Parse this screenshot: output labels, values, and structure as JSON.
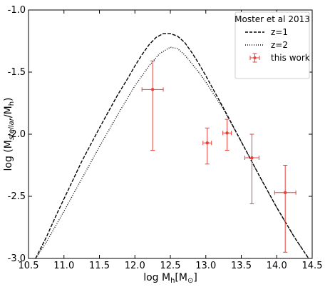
{
  "chart_data": {
    "type": "line",
    "xlim": [
      10.5,
      14.5
    ],
    "ylim": [
      -3.0,
      -1.0
    ],
    "x_ticks": [
      10.5,
      11.0,
      11.5,
      12.0,
      12.5,
      13.0,
      13.5,
      14.0,
      14.5
    ],
    "x_tick_labels": [
      "10.5",
      "11.0",
      "11.5",
      "12.0",
      "12.5",
      "13.0",
      "13.5",
      "14.0",
      "14.5"
    ],
    "y_ticks": [
      -3.0,
      -2.5,
      -2.0,
      -1.5,
      -1.0
    ],
    "y_tick_labels": [
      "-3.0",
      "-2.5",
      "-2.0",
      "-1.5",
      "-1.0"
    ],
    "xlabel": {
      "main": "log M",
      "sub": "h",
      "tail": "[M",
      "sub2": "⊙",
      "end": "]"
    },
    "ylabel": {
      "main": "log (M",
      "sub": "stellar",
      "mid": "/M",
      "sub2": "h",
      "end": ")"
    },
    "grid": false,
    "legend": {
      "position": "top-right",
      "title": "Moster et al 2013"
    },
    "series": [
      {
        "name": "z=1",
        "style": "dashed",
        "color": "#000000",
        "x": [
          10.6,
          10.75,
          10.9,
          11.0,
          11.25,
          11.5,
          11.75,
          11.9,
          12.0,
          12.1,
          12.2,
          12.3,
          12.4,
          12.5,
          12.6,
          12.7,
          12.8,
          12.9,
          13.0,
          13.25,
          13.5,
          13.75,
          14.0,
          14.25,
          14.45
        ],
        "y": [
          -3.0,
          -2.83,
          -2.64,
          -2.52,
          -2.22,
          -1.95,
          -1.69,
          -1.55,
          -1.45,
          -1.36,
          -1.28,
          -1.22,
          -1.19,
          -1.19,
          -1.21,
          -1.26,
          -1.34,
          -1.43,
          -1.53,
          -1.79,
          -2.06,
          -2.33,
          -2.59,
          -2.83,
          -3.0
        ]
      },
      {
        "name": "z=2",
        "style": "dotted",
        "color": "#000000",
        "x": [
          10.6,
          10.75,
          10.9,
          11.0,
          11.25,
          11.5,
          11.75,
          12.0,
          12.2,
          12.35,
          12.5,
          12.6,
          12.7,
          12.8,
          12.9,
          13.0,
          13.25,
          13.5,
          13.75,
          14.0,
          14.25,
          14.45
        ],
        "y": [
          -3.0,
          -2.87,
          -2.72,
          -2.62,
          -2.36,
          -2.1,
          -1.85,
          -1.61,
          -1.45,
          -1.35,
          -1.3,
          -1.31,
          -1.36,
          -1.43,
          -1.5,
          -1.58,
          -1.8,
          -2.06,
          -2.33,
          -2.59,
          -2.83,
          -3.0
        ]
      },
      {
        "name": "this work",
        "style": "errorbar",
        "color": "#e8403a",
        "points": [
          {
            "x": 12.25,
            "y": -1.64,
            "xerr": 0.15,
            "yerr_lo": 0.49,
            "yerr_hi": 0.23
          },
          {
            "x": 13.02,
            "y": -2.07,
            "xerr": 0.06,
            "yerr_lo": 0.17,
            "yerr_hi": 0.12
          },
          {
            "x": 13.3,
            "y": -1.99,
            "xerr": 0.06,
            "yerr_lo": 0.14,
            "yerr_hi": 0.11
          },
          {
            "x": 13.65,
            "y": -2.19,
            "xerr": 0.1,
            "yerr_lo": 0.37,
            "yerr_hi": 0.19
          },
          {
            "x": 14.12,
            "y": -2.47,
            "xerr": 0.15,
            "yerr_lo": 0.48,
            "yerr_hi": 0.22
          }
        ]
      }
    ]
  }
}
